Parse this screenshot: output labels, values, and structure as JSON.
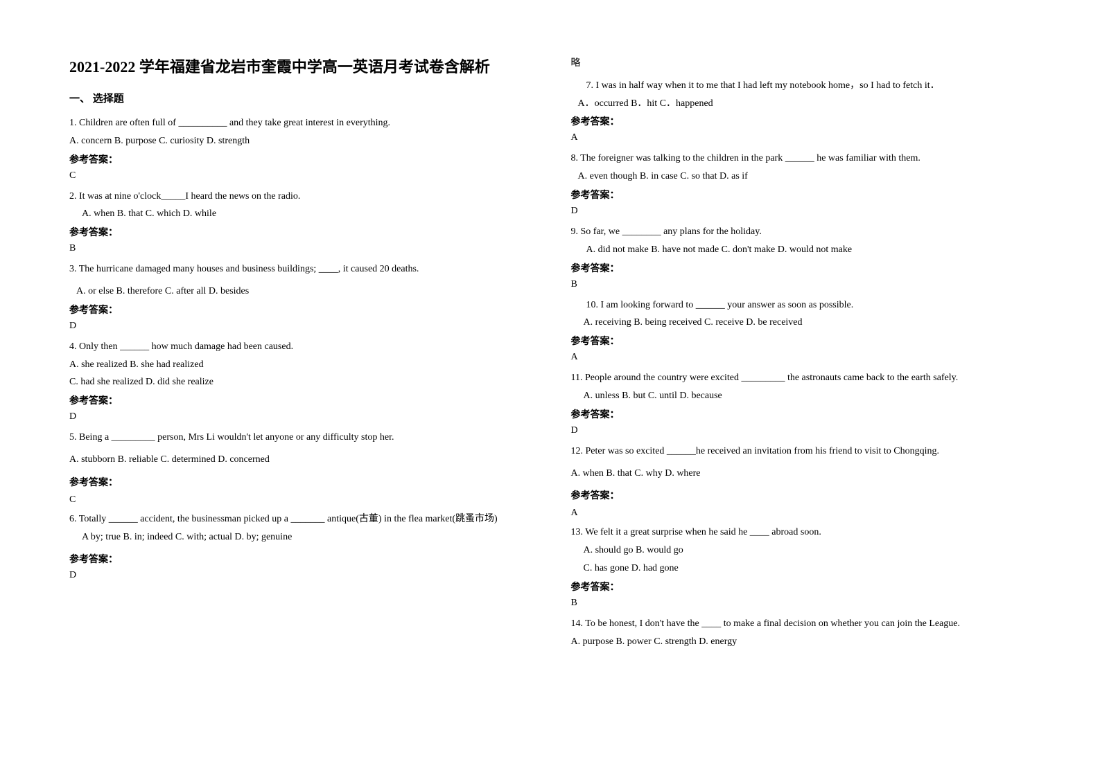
{
  "doc": {
    "title": "2021-2022 学年福建省龙岩市奎霞中学高一英语月考试卷含解析",
    "section": "一、 选择题",
    "answer_label": "参考答案：",
    "omit": "略",
    "font": {
      "title_size": 22,
      "body_size": 14,
      "title_weight": "bold"
    },
    "colors": {
      "text": "#000000",
      "bg": "#ffffff"
    }
  },
  "q1": {
    "text": "1. Children are often full of __________ and they take great interest in everything.",
    "opts": "A. concern   B. purpose    C. curiosity   D. strength",
    "ans": "C"
  },
  "q2": {
    "text": "2. It was at nine o'clock_____I heard the news on the radio.",
    "opts": "A. when        B. that         C. which         D. while",
    "ans": "B"
  },
  "q3": {
    "text": "3. The hurricane damaged many houses and business buildings; ____, it caused 20 deaths.",
    "opts": "A. or else            B. therefore        C. after all              D. besides",
    "ans": "D"
  },
  "q4": {
    "text": "4. Only then ______ how much damage had been caused.",
    "opts1": "A. she realized               B. she had realized",
    "opts2": "C. had she realized              D. did she realize",
    "ans": "D"
  },
  "q5": {
    "text": "5. Being a _________ person, Mrs Li wouldn't let anyone or any difficulty stop her.",
    "opts": "A. stubborn    B. reliable     C. determined    D. concerned",
    "ans": "C"
  },
  "q6": {
    "text": "6. Totally ______ accident, the businessman picked up a _______ antique(古董) in the flea market(跳蚤市场)",
    "opts": "A by; true        B. in; indeed       C. with; actual     D. by; genuine",
    "ans": "D"
  },
  "q7": {
    "text": "7. I was in half way when it    to me that I had left my notebook home，so I had to fetch it．",
    "opts": "A．occurred    B．hit    C．happened",
    "ans": "A"
  },
  "q8": {
    "text": "8. The foreigner was talking to the children in the park ______ he was familiar with them.",
    "opts": "A. even though   B. in case   C. so that   D. as if",
    "ans": "D"
  },
  "q9": {
    "text": "9. So far, we ________ any plans for the holiday.",
    "opts": "A. did not make    B. have not made     C. don't make         D. would not make",
    "ans": "B"
  },
  "q10": {
    "text": "10.  I am looking forward to ______ your answer as soon as possible.",
    "opts": "A. receiving      B. being received       C. receive       D. be received",
    "ans": "A"
  },
  "q11": {
    "text": "11. People around the country were excited _________ the astronauts came back to the earth safely.",
    "opts": "A. unless            B. but            C. until            D. because",
    "ans": "D"
  },
  "q12": {
    "text": "12. Peter was so excited ______he received an invitation from his friend to visit to Chongqing.",
    "opts": "A. when       B. that       C. why       D. where",
    "ans": "A"
  },
  "q13": {
    "text": "13. We felt it a great surprise when he said he ____ abroad soon.",
    "opts1": "A. should go               B. would go",
    "opts2": "C. has gone        D. had gone",
    "ans": "B"
  },
  "q14": {
    "text": "14. To be honest, I don't have the ____ to make a final decision on whether you can join the League.",
    "opts": "A. purpose              B. power         C. strength                D. energy"
  }
}
